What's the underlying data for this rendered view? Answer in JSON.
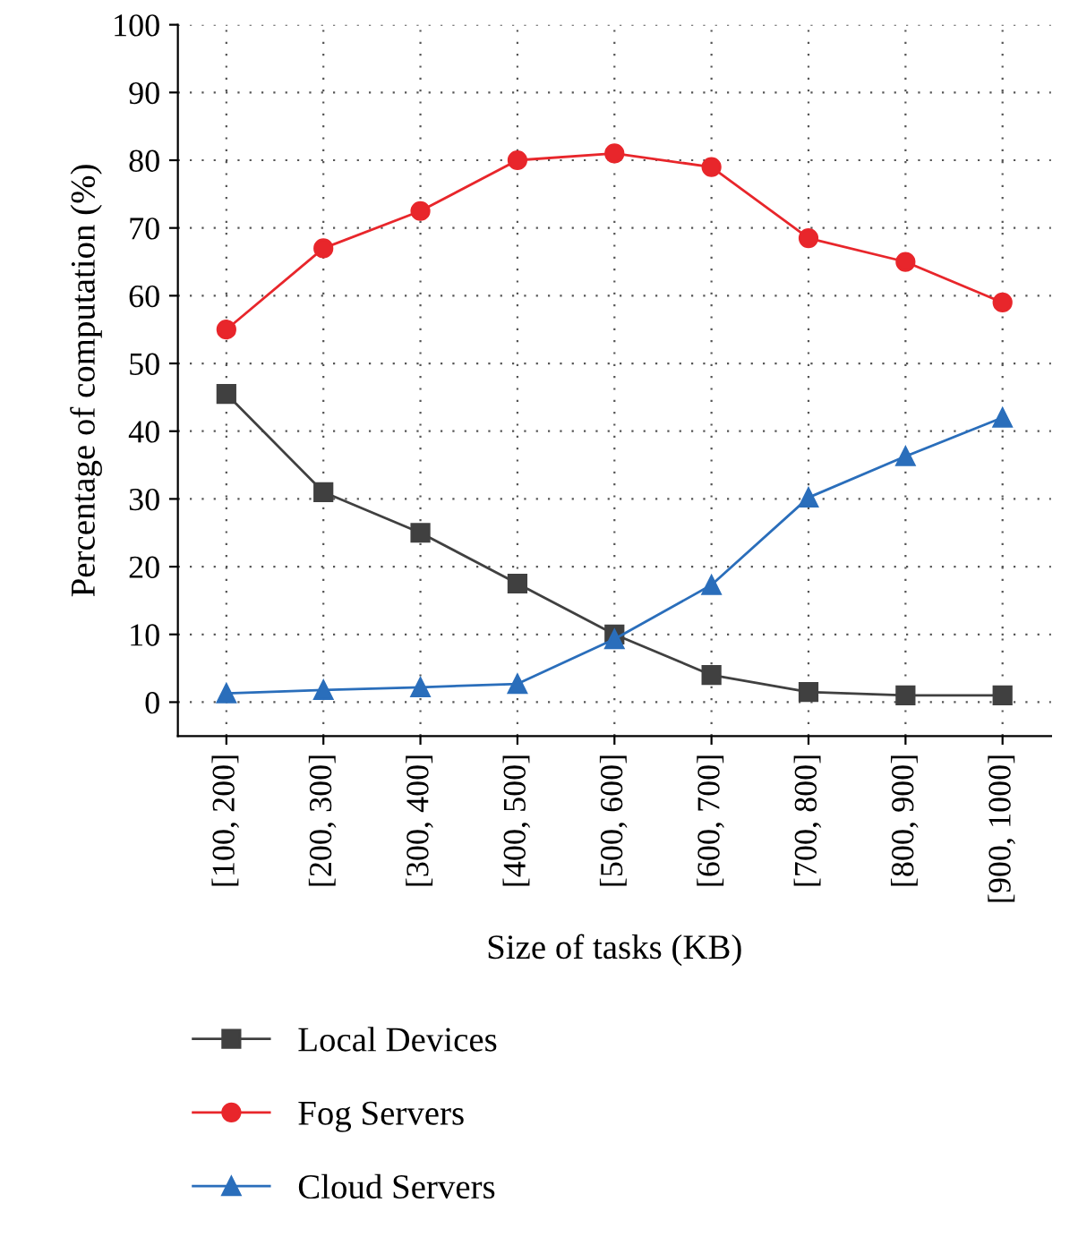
{
  "chart_data": {
    "type": "line",
    "xlabel": "Size of tasks (KB)",
    "ylabel": "Percentage of computation (%)",
    "categories": [
      "[100, 200]",
      "[200, 300]",
      "[300, 400]",
      "[400, 500]",
      "[500, 600]",
      "[600, 700]",
      "[700, 800]",
      "[800, 900]",
      "[900, 1000]"
    ],
    "series": [
      {
        "name": "Local Devices",
        "color": "#404040",
        "marker": "square",
        "values": [
          45.5,
          31,
          25,
          17.5,
          10,
          4,
          1.5,
          1,
          1
        ]
      },
      {
        "name": "Fog Servers",
        "color": "#e8262b",
        "marker": "circle",
        "values": [
          55,
          67,
          72.5,
          80,
          81,
          79,
          68.5,
          65,
          59
        ]
      },
      {
        "name": "Cloud Servers",
        "color": "#2a6ebb",
        "marker": "triangle",
        "values": [
          1.3,
          1.8,
          2.2,
          2.7,
          9.3,
          17.3,
          30.2,
          36.3,
          42
        ]
      }
    ],
    "ylim": [
      -5,
      100
    ],
    "yticks": [
      0,
      10,
      20,
      30,
      40,
      50,
      60,
      70,
      80,
      90,
      100
    ],
    "grid": true,
    "legend": "bottom",
    "line_style": "solid"
  }
}
